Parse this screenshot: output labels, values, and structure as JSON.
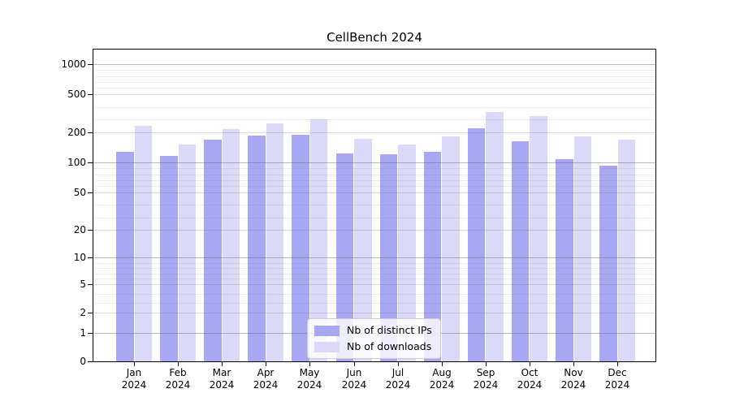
{
  "title": "CellBench 2024",
  "chart_data": {
    "type": "bar",
    "title": "CellBench 2024",
    "xlabel": "",
    "ylabel": "",
    "yscale": "log-like ladder (1-2-5 sequence), piecewise linear between ticks",
    "ylim": [
      0,
      1500
    ],
    "y_ticks": [
      0,
      1,
      2,
      5,
      10,
      20,
      50,
      100,
      200,
      500,
      1000
    ],
    "y_minor_gridlines": [
      3,
      4,
      6,
      7,
      8,
      9,
      30,
      40,
      60,
      70,
      80,
      90,
      300,
      400,
      600,
      700,
      800,
      900
    ],
    "grid": true,
    "legend_position": "lower center",
    "categories": [
      "Jan 2024",
      "Feb 2024",
      "Mar 2024",
      "Apr 2024",
      "May 2024",
      "Jun 2024",
      "Jul 2024",
      "Aug 2024",
      "Sep 2024",
      "Oct 2024",
      "Nov 2024",
      "Dec 2024"
    ],
    "series": [
      {
        "name": "Nb of distinct IPs",
        "color": "#a7a7f3",
        "values": [
          135,
          122,
          177,
          190,
          193,
          129,
          127,
          135,
          232,
          170,
          111,
          95
        ]
      },
      {
        "name": "Nb of downloads",
        "color": "#dadaf8",
        "values": [
          250,
          159,
          227,
          269,
          305,
          179,
          161,
          188,
          361,
          330,
          186,
          176
        ]
      }
    ]
  },
  "colors": {
    "axis": "#000000",
    "grid_major": "#bdbdbd",
    "grid_mid": "#dcdcdc",
    "grid_minor": "#ececec",
    "legend_border": "#cccccc"
  }
}
